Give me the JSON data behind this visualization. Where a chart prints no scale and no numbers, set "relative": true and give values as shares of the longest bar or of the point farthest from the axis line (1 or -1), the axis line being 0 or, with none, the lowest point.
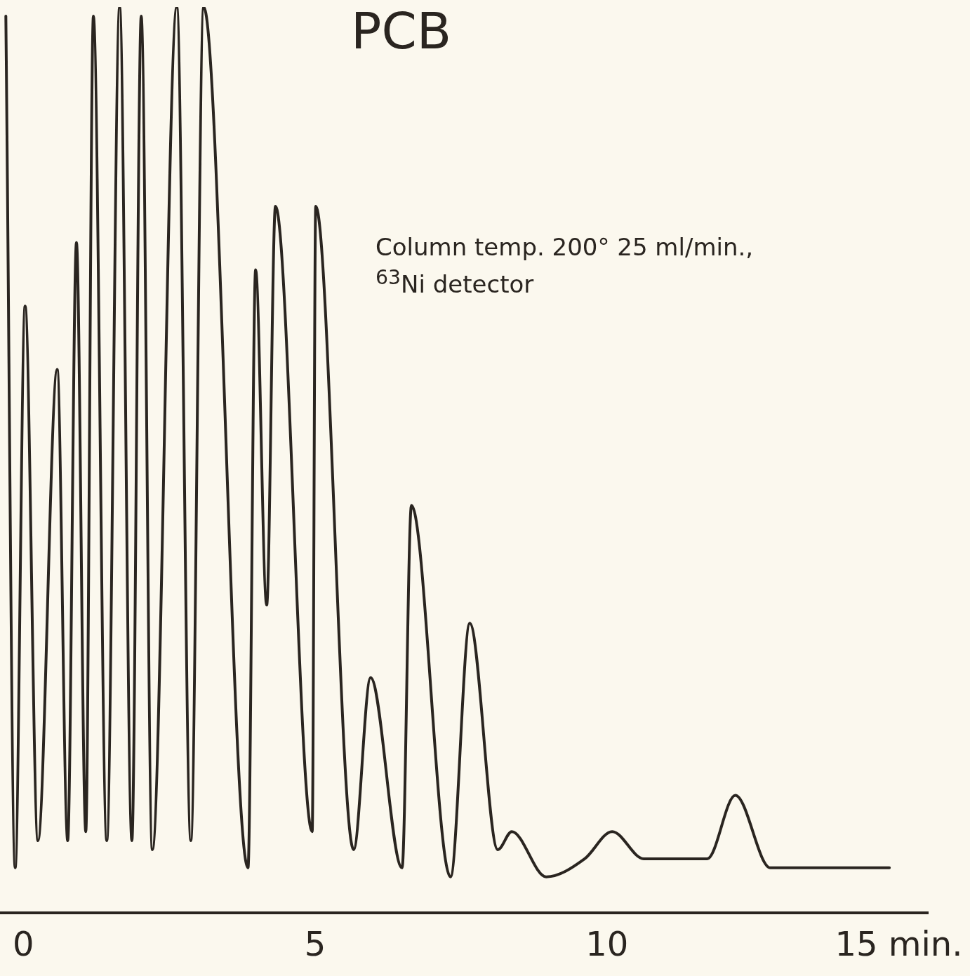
{
  "chart_data": {
    "type": "line",
    "title": "PCB",
    "relative": true,
    "annotations": [
      "Column temp. 200° 25 ml/min., $^{63}$Ni detector"
    ],
    "xlim": [
      -0.4,
      15.5
    ],
    "xticks": [
      0,
      5,
      10,
      {
        "value": 15,
        "label": "15 min."
      }
    ],
    "grid": false,
    "legend": false,
    "marker": "none",
    "line_style": "solid",
    "series": [
      {
        "color": "#2a2520",
        "x": [
          -0.3,
          -0.14,
          0.03,
          0.25,
          0.58,
          0.76,
          0.91,
          1.07,
          1.2,
          1.43,
          1.65,
          1.86,
          2.02,
          2.21,
          2.63,
          2.87,
          3.09,
          3.85,
          3.98,
          4.17,
          4.32,
          4.95,
          5.01,
          5.66,
          5.95,
          6.49,
          6.65,
          7.32,
          7.65,
          8.13,
          8.37,
          8.96,
          9.62,
          10.09,
          10.63,
          11.72,
          12.2,
          12.8,
          14.84
        ],
        "values": [
          0.99,
          0.05,
          0.67,
          0.08,
          0.6,
          0.08,
          0.74,
          0.09,
          0.99,
          0.08,
          1.0,
          0.08,
          0.99,
          0.07,
          1.0,
          0.08,
          1.0,
          0.05,
          0.71,
          0.34,
          0.78,
          0.09,
          0.78,
          0.07,
          0.26,
          0.05,
          0.45,
          0.04,
          0.32,
          0.07,
          0.09,
          0.04,
          0.06,
          0.09,
          0.06,
          0.06,
          0.13,
          0.05,
          0.05
        ]
      }
    ]
  }
}
